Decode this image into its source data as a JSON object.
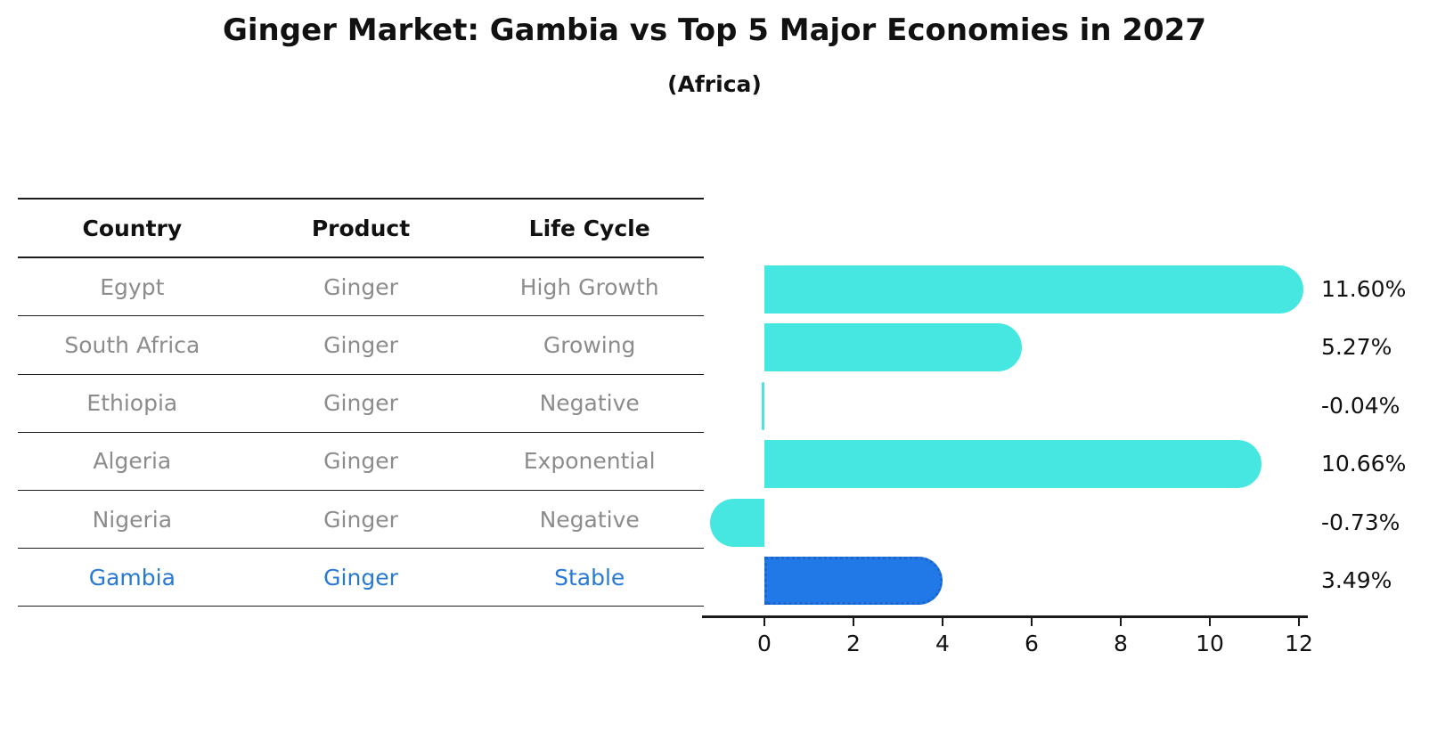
{
  "title": "Ginger Market: Gambia vs Top 5 Major Economies in 2027",
  "subtitle": "(Africa)",
  "table": {
    "headers": [
      "Country",
      "Product",
      "Life Cycle"
    ],
    "rows": [
      {
        "country": "Egypt",
        "product": "Ginger",
        "life_cycle": "High Growth",
        "highlight": false
      },
      {
        "country": "South Africa",
        "product": "Ginger",
        "life_cycle": "Growing",
        "highlight": false
      },
      {
        "country": "Ethiopia",
        "product": "Ginger",
        "life_cycle": "Negative",
        "highlight": false
      },
      {
        "country": "Algeria",
        "product": "Ginger",
        "life_cycle": "Exponential",
        "highlight": false
      },
      {
        "country": "Nigeria",
        "product": "Ginger",
        "life_cycle": "Negative",
        "highlight": false
      },
      {
        "country": "Gambia",
        "product": "Ginger",
        "life_cycle": "Stable",
        "highlight": true
      }
    ]
  },
  "chart_data": {
    "type": "bar",
    "orientation": "horizontal",
    "title": "Ginger Market: Gambia vs Top 5 Major Economies in 2027",
    "subtitle": "(Africa)",
    "categories": [
      "Egypt",
      "South Africa",
      "Ethiopia",
      "Algeria",
      "Nigeria",
      "Gambia"
    ],
    "values": [
      11.6,
      5.27,
      -0.04,
      10.66,
      -0.73,
      3.49
    ],
    "value_labels": [
      "11.60%",
      "5.27%",
      "-0.04%",
      "10.66%",
      "-0.73%",
      "3.49%"
    ],
    "x_ticks": [
      0,
      2,
      4,
      6,
      8,
      10,
      12
    ],
    "x_tick_labels": [
      "0",
      "2",
      "4",
      "6",
      "8",
      "10",
      "12"
    ],
    "xlim": [
      -1.4,
      12.2
    ],
    "grid": false,
    "legend": false,
    "highlight_index": 5
  },
  "colors": {
    "bar": "#45e7e0",
    "highlight_bar": "#2179e8",
    "highlight_border": "#1a66cc",
    "highlight_text": "#2779d6",
    "table_text": "#8c8c8c",
    "heading_text": "#111111",
    "axis": "#1a1a1a"
  }
}
